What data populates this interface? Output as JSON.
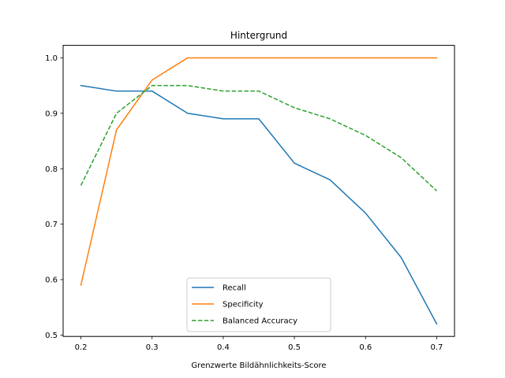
{
  "chart_data": {
    "type": "line",
    "title": "Hintergrund",
    "xlabel": "Grenzwerte Bildähnlichkeits-Score",
    "ylabel": "",
    "xlim": [
      0.175,
      0.725
    ],
    "ylim": [
      0.4975,
      1.0225
    ],
    "x": [
      0.2,
      0.25,
      0.3,
      0.35,
      0.4,
      0.45,
      0.5,
      0.55,
      0.6,
      0.65,
      0.7
    ],
    "xticks": [
      0.2,
      0.3,
      0.4,
      0.5,
      0.6,
      0.7
    ],
    "xtick_labels": [
      "0.2",
      "0.3",
      "0.4",
      "0.5",
      "0.6",
      "0.7"
    ],
    "yticks": [
      0.5,
      0.6,
      0.7,
      0.8,
      0.9,
      1.0
    ],
    "ytick_labels": [
      "0.5",
      "0.6",
      "0.7",
      "0.8",
      "0.9",
      "1.0"
    ],
    "grid": false,
    "legend_position": "bottom-center",
    "series": [
      {
        "name": "Recall",
        "color": "#1f77b4",
        "style": "solid",
        "values": [
          0.95,
          0.94,
          0.94,
          0.9,
          0.89,
          0.89,
          0.81,
          0.78,
          0.72,
          0.64,
          0.52
        ]
      },
      {
        "name": "Specificity",
        "color": "#ff7f0e",
        "style": "solid",
        "values": [
          0.59,
          0.87,
          0.96,
          1.0,
          1.0,
          1.0,
          1.0,
          1.0,
          1.0,
          1.0,
          1.0
        ]
      },
      {
        "name": "Balanced Accuracy",
        "color": "#2ca02c",
        "style": "dashed",
        "values": [
          0.77,
          0.9,
          0.95,
          0.95,
          0.94,
          0.94,
          0.91,
          0.89,
          0.86,
          0.82,
          0.76
        ]
      }
    ]
  }
}
